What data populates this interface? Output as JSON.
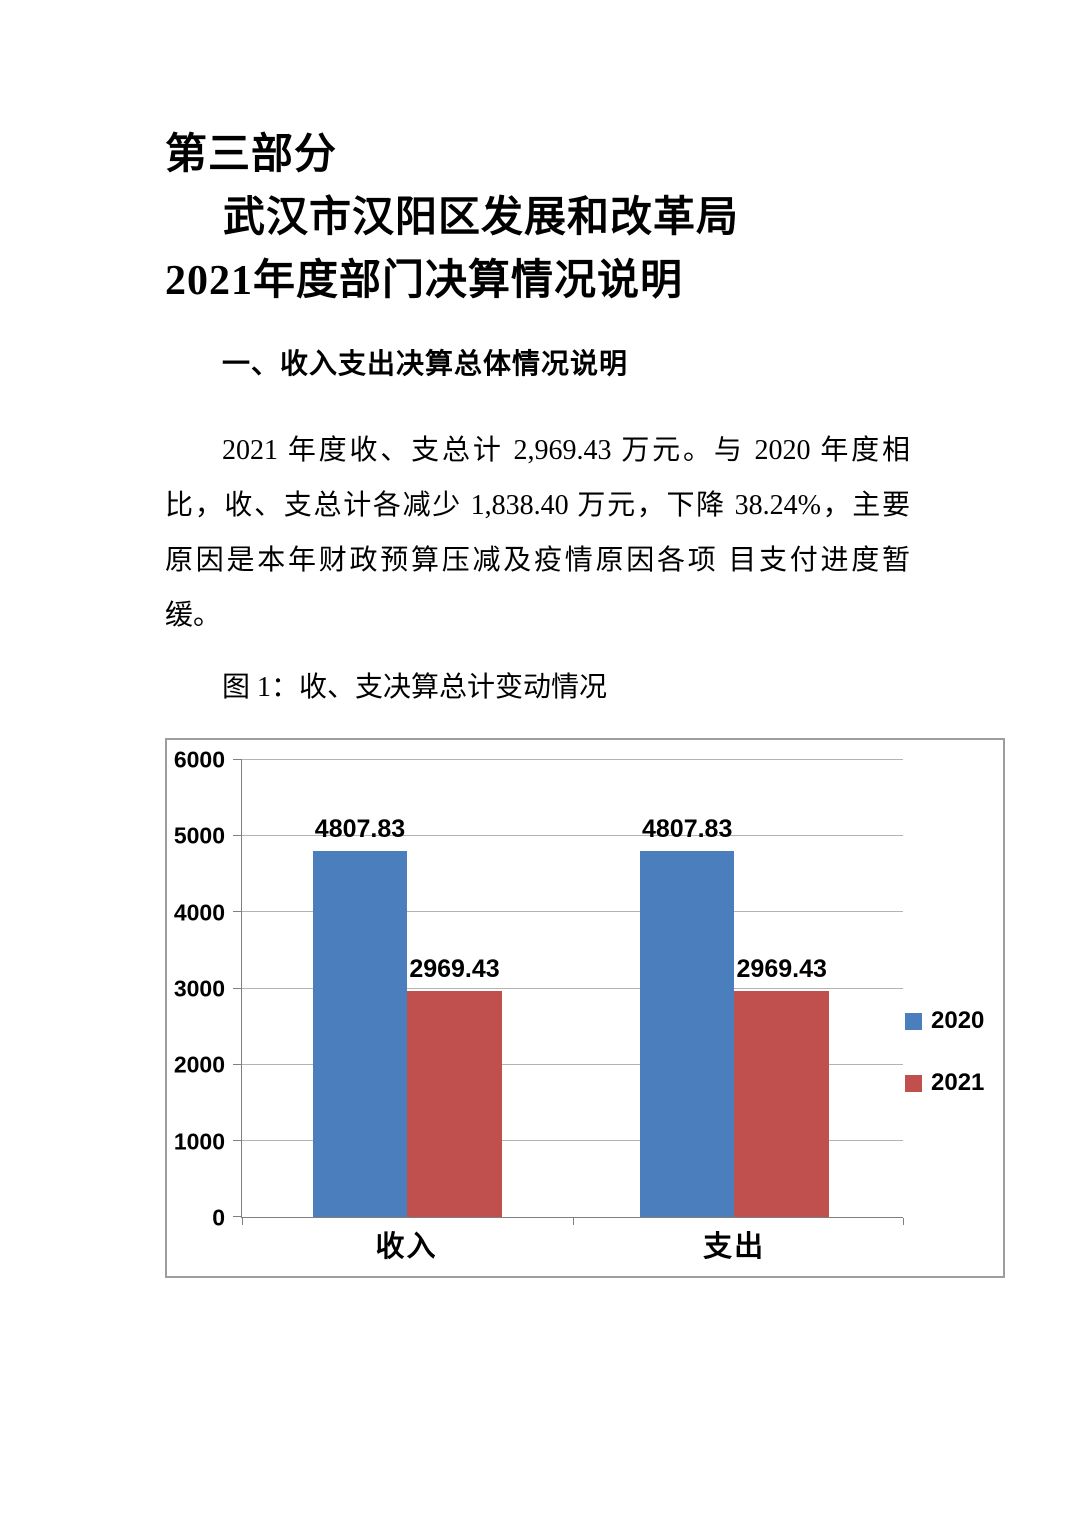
{
  "page": {
    "title": {
      "line1_part1": "第三部分",
      "line1_part2": "武汉市汉阳区发展和改革局",
      "line2": "2021年度部门决算情况说明"
    },
    "section_heading": "一、收入支出决算总体情况说明",
    "paragraph_lines": [
      "2021 年度收、支总计 2,969.43 万元。与 2020 年度相",
      "比，收、支总计各减少 1,838.40 万元，下降 38.24%，主要",
      "原因是本年财政预算压减及疫情原因各项 目支付进度暂",
      "缓。"
    ],
    "figure_caption": "图 1：收、支决算总计变动情况"
  },
  "chart_data": {
    "type": "bar",
    "title": "收、支决算总计变动情况",
    "categories": [
      "收入",
      "支出"
    ],
    "series": [
      {
        "name": "2020",
        "color": "#4a7ebd",
        "values": [
          4807.83,
          4807.83
        ]
      },
      {
        "name": "2021",
        "color": "#c0504d",
        "values": [
          2969.43,
          2969.43
        ]
      }
    ],
    "xlabel": "",
    "ylabel": "",
    "ylim": [
      0,
      6000
    ],
    "y_ticks": [
      0,
      1000,
      2000,
      3000,
      4000,
      5000,
      6000
    ],
    "grid": true,
    "legend_position": "right",
    "data_labels_shown": true,
    "colors": {
      "gridline": "#b3b3b3",
      "axis": "#7f7f7f",
      "chart_border": "#9d9d9d",
      "text": "#000000"
    }
  }
}
